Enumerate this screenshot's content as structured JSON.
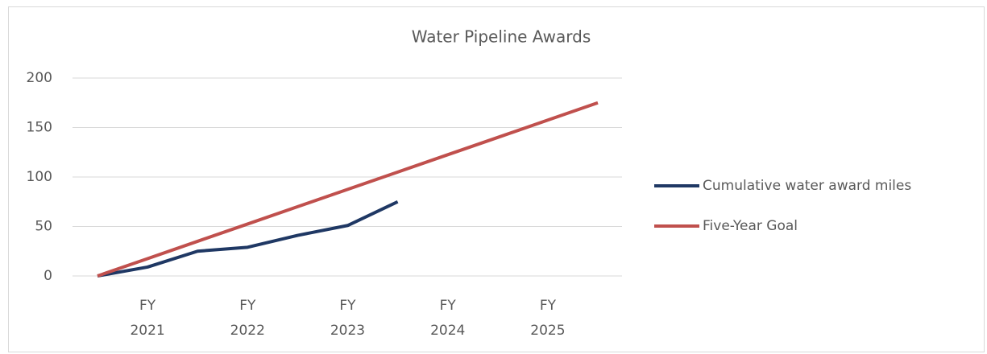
{
  "chart_data": {
    "type": "line",
    "title": "Water Pipeline Awards",
    "categories": [
      null,
      "FY 2021",
      null,
      "FY 2022",
      null,
      "FY 2023",
      null,
      "FY 2024",
      null,
      "FY 2025",
      null
    ],
    "series": [
      {
        "name": "Cumulative water award miles",
        "color": "#1f3864",
        "values": [
          0,
          9,
          25,
          29,
          41,
          51,
          75,
          null,
          null,
          null,
          null
        ]
      },
      {
        "name": "Five-Year Goal",
        "color": "#c0504d",
        "values": [
          0,
          17.5,
          35,
          52.5,
          70,
          87.5,
          105,
          122.5,
          140,
          157.5,
          175
        ]
      }
    ],
    "ylim": [
      0,
      200
    ],
    "yticks": [
      0,
      50,
      100,
      150,
      200
    ],
    "grid": true,
    "legend": "right"
  }
}
